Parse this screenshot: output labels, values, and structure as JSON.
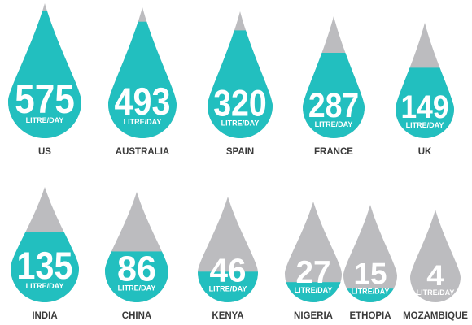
{
  "chart_data": {
    "type": "bar",
    "title": "",
    "xlabel": "",
    "ylabel": "",
    "ylim": [
      0,
      600
    ],
    "categories": [
      "US",
      "AUSTRALIA",
      "SPAIN",
      "FRANCE",
      "UK",
      "INDIA",
      "CHINA",
      "KENYA",
      "NIGERIA",
      "ETHOPIA",
      "MOZAMBIQUE"
    ],
    "series": [
      {
        "values": [
          575,
          493,
          320,
          287,
          149,
          135,
          86,
          46,
          27,
          15,
          4
        ],
        "labels": [
          "575",
          "493",
          "320",
          "287",
          "149",
          "135",
          "86",
          "46",
          "27",
          "15",
          "4"
        ],
        "fill_fraction": [
          0.94,
          0.89,
          0.85,
          0.7,
          0.61,
          0.61,
          0.46,
          0.29,
          0.2,
          0.14,
          0.0
        ]
      }
    ],
    "unit_label": "LITRE/DAY",
    "colors": {
      "fill": "#22bfbf",
      "empty": "#bcbcbf",
      "text": "#3a3a3a"
    }
  }
}
